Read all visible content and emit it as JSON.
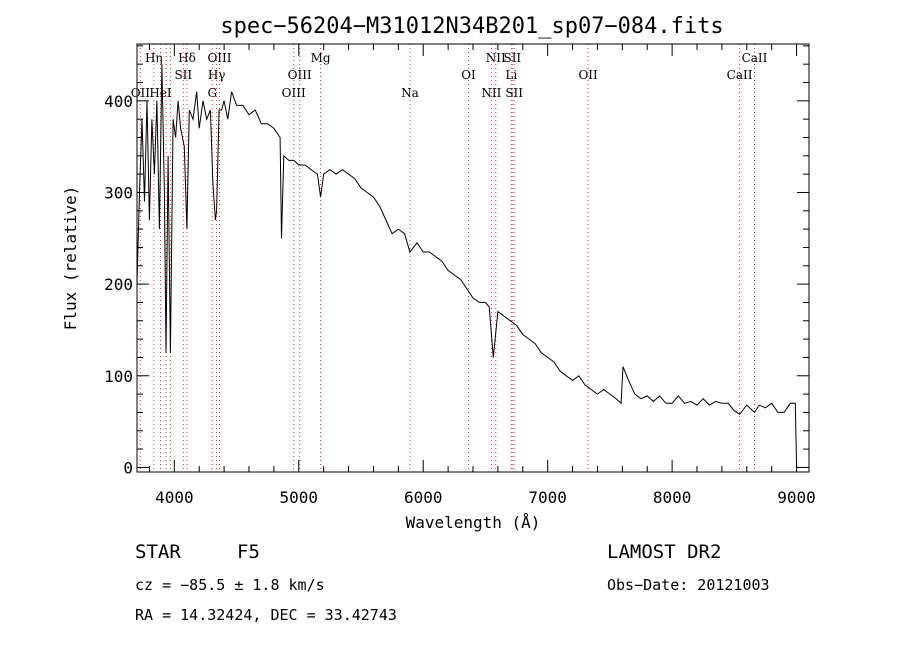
{
  "chart_data": {
    "type": "line",
    "title": "spec−56204−M31012N34B201_sp07−084.fits",
    "xlabel": "Wavelength (Å)",
    "ylabel": "Flux (relative)",
    "xlim": [
      3700,
      9100
    ],
    "ylim": [
      -5,
      462
    ],
    "x_ticks": [
      4000,
      5000,
      6000,
      7000,
      8000,
      9000
    ],
    "y_ticks": [
      0,
      100,
      200,
      300,
      400
    ],
    "series": [
      {
        "name": "spectrum",
        "points": [
          [
            3700,
            200
          ],
          [
            3720,
            300
          ],
          [
            3740,
            380
          ],
          [
            3760,
            290
          ],
          [
            3780,
            400
          ],
          [
            3800,
            270
          ],
          [
            3820,
            380
          ],
          [
            3840,
            320
          ],
          [
            3860,
            400
          ],
          [
            3880,
            260
          ],
          [
            3900,
            440
          ],
          [
            3920,
            300
          ],
          [
            3933,
            125
          ],
          [
            3950,
            340
          ],
          [
            3968,
            125
          ],
          [
            3990,
            380
          ],
          [
            4010,
            360
          ],
          [
            4030,
            400
          ],
          [
            4050,
            370
          ],
          [
            4080,
            350
          ],
          [
            4101,
            260
          ],
          [
            4120,
            390
          ],
          [
            4150,
            380
          ],
          [
            4180,
            410
          ],
          [
            4200,
            370
          ],
          [
            4230,
            400
          ],
          [
            4260,
            380
          ],
          [
            4290,
            390
          ],
          [
            4310,
            310
          ],
          [
            4330,
            270
          ],
          [
            4340,
            280
          ],
          [
            4360,
            390
          ],
          [
            4380,
            390
          ],
          [
            4400,
            400
          ],
          [
            4430,
            380
          ],
          [
            4460,
            410
          ],
          [
            4500,
            395
          ],
          [
            4550,
            395
          ],
          [
            4600,
            385
          ],
          [
            4650,
            390
          ],
          [
            4700,
            375
          ],
          [
            4750,
            375
          ],
          [
            4800,
            370
          ],
          [
            4850,
            360
          ],
          [
            4861,
            250
          ],
          [
            4880,
            340
          ],
          [
            4920,
            335
          ],
          [
            4960,
            335
          ],
          [
            5000,
            330
          ],
          [
            5050,
            330
          ],
          [
            5100,
            325
          ],
          [
            5150,
            320
          ],
          [
            5175,
            295
          ],
          [
            5200,
            320
          ],
          [
            5250,
            325
          ],
          [
            5300,
            320
          ],
          [
            5350,
            325
          ],
          [
            5400,
            320
          ],
          [
            5450,
            315
          ],
          [
            5500,
            305
          ],
          [
            5550,
            300
          ],
          [
            5600,
            295
          ],
          [
            5650,
            285
          ],
          [
            5700,
            270
          ],
          [
            5750,
            255
          ],
          [
            5800,
            260
          ],
          [
            5850,
            255
          ],
          [
            5893,
            235
          ],
          [
            5950,
            245
          ],
          [
            6000,
            235
          ],
          [
            6050,
            235
          ],
          [
            6100,
            230
          ],
          [
            6150,
            225
          ],
          [
            6200,
            215
          ],
          [
            6250,
            210
          ],
          [
            6300,
            205
          ],
          [
            6350,
            195
          ],
          [
            6400,
            185
          ],
          [
            6450,
            180
          ],
          [
            6500,
            180
          ],
          [
            6530,
            175
          ],
          [
            6563,
            120
          ],
          [
            6600,
            170
          ],
          [
            6650,
            165
          ],
          [
            6700,
            160
          ],
          [
            6750,
            155
          ],
          [
            6800,
            145
          ],
          [
            6850,
            140
          ],
          [
            6900,
            135
          ],
          [
            6950,
            125
          ],
          [
            7000,
            120
          ],
          [
            7050,
            115
          ],
          [
            7100,
            105
          ],
          [
            7150,
            100
          ],
          [
            7200,
            95
          ],
          [
            7250,
            100
          ],
          [
            7300,
            90
          ],
          [
            7350,
            85
          ],
          [
            7400,
            80
          ],
          [
            7450,
            85
          ],
          [
            7500,
            80
          ],
          [
            7550,
            75
          ],
          [
            7590,
            70
          ],
          [
            7605,
            110
          ],
          [
            7620,
            105
          ],
          [
            7650,
            95
          ],
          [
            7700,
            80
          ],
          [
            7750,
            75
          ],
          [
            7800,
            78
          ],
          [
            7850,
            72
          ],
          [
            7900,
            78
          ],
          [
            7950,
            70
          ],
          [
            8000,
            70
          ],
          [
            8050,
            78
          ],
          [
            8100,
            70
          ],
          [
            8150,
            72
          ],
          [
            8200,
            68
          ],
          [
            8250,
            75
          ],
          [
            8300,
            68
          ],
          [
            8350,
            72
          ],
          [
            8400,
            70
          ],
          [
            8450,
            70
          ],
          [
            8498,
            62
          ],
          [
            8542,
            58
          ],
          [
            8600,
            68
          ],
          [
            8662,
            60
          ],
          [
            8700,
            68
          ],
          [
            8750,
            65
          ],
          [
            8800,
            70
          ],
          [
            8850,
            60
          ],
          [
            8900,
            60
          ],
          [
            8950,
            70
          ],
          [
            8990,
            70
          ],
          [
            9000,
            0
          ]
        ]
      }
    ],
    "lines": [
      {
        "label": "OII",
        "wave": 3727,
        "row": 3
      },
      {
        "label": "Hη",
        "wave": 3835,
        "row": 1
      },
      {
        "label": "HeI",
        "wave": 3889,
        "row": 3
      },
      {
        "label": "Hδ",
        "wave": 4102,
        "row": 1
      },
      {
        "label": "SII",
        "wave": 4072,
        "row": 2
      },
      {
        "label": "OIII",
        "wave": 4363,
        "row": 1
      },
      {
        "label": "Hγ",
        "wave": 4340,
        "row": 2
      },
      {
        "label": "G",
        "wave": 4305,
        "row": 3
      },
      {
        "label": "OIII",
        "wave": 5007,
        "row": 2
      },
      {
        "label": "OIII",
        "wave": 4959,
        "row": 3
      },
      {
        "label": "Mg",
        "wave": 5175,
        "row": 1
      },
      {
        "label": "Na",
        "wave": 5893,
        "row": 3
      },
      {
        "label": "OI",
        "wave": 6364,
        "row": 2
      },
      {
        "label": "NII",
        "wave": 6583,
        "row": 1
      },
      {
        "label": "SII",
        "wave": 6716,
        "row": 1
      },
      {
        "label": "Li",
        "wave": 6708,
        "row": 2
      },
      {
        "label": "NII",
        "wave": 6548,
        "row": 3
      },
      {
        "label": "SII",
        "wave": 6731,
        "row": 3
      },
      {
        "label": "OII",
        "wave": 7325,
        "row": 2
      },
      {
        "label": "CaII",
        "wave": 8662,
        "row": 1
      },
      {
        "label": "CaII",
        "wave": 8542,
        "row": 2
      },
      {
        "label": "",
        "wave": 3970,
        "row": 0
      },
      {
        "label": "",
        "wave": 3934,
        "row": 0
      }
    ]
  },
  "info": {
    "class_label": "STAR",
    "subclass": "F5",
    "survey": "LAMOST DR2",
    "cz": "cz = −85.5 ± 1.8 km/s",
    "obs_date": "Obs−Date: 20121003",
    "coords": "RA =  14.32424, DEC =  33.42743"
  }
}
